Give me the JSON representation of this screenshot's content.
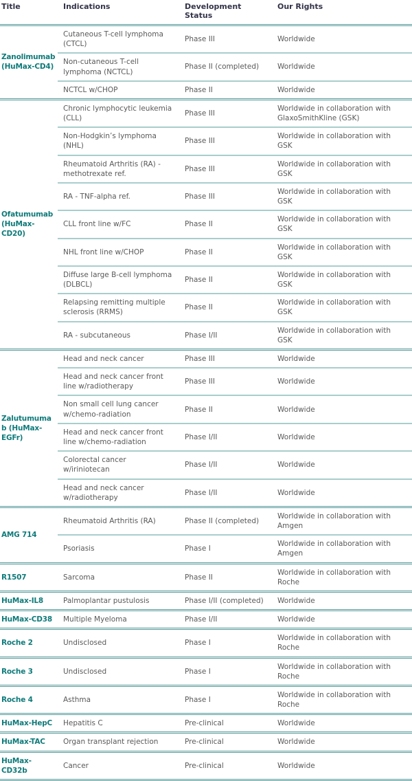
{
  "colors": {
    "accent_teal": "#0f7a7a",
    "header_text": "#333349",
    "body_text": "#595959",
    "divider_dark": "#569a9a",
    "divider_light": "#a9cdcd"
  },
  "table": {
    "columns": [
      "Title",
      "Indications",
      "Development Status",
      "Our Rights"
    ],
    "groups": [
      {
        "title": "Zanolimumab (HuMax-CD4)",
        "rows": [
          {
            "indication": "Cutaneous T-cell lymphoma (CTCL)",
            "status": "Phase III",
            "rights": "Worldwide"
          },
          {
            "indication": "Non-cutaneous T-cell lymphoma (NCTCL)",
            "status": "Phase II (completed)",
            "rights": "Worldwide"
          },
          {
            "indication": "NCTCL w/CHOP",
            "status": "Phase II",
            "rights": "Worldwide"
          }
        ]
      },
      {
        "title": "Ofatumumab (HuMax-CD20)",
        "rows": [
          {
            "indication": "Chronic lymphocytic leukemia (CLL)",
            "status": "Phase III",
            "rights": "Worldwide in collaboration with GlaxoSmithKline (GSK)"
          },
          {
            "indication": "Non-Hodgkin’s lymphoma (NHL)",
            "status": "Phase III",
            "rights": "Worldwide in collaboration with GSK"
          },
          {
            "indication": "Rheumatoid Arthritis (RA) - methotrexate ref.",
            "status": "Phase III",
            "rights": "Worldwide in collaboration with GSK"
          },
          {
            "indication": "RA - TNF-alpha ref.",
            "status": "Phase III",
            "rights": "Worldwide in collaboration with GSK"
          },
          {
            "indication": "CLL front line w/FC",
            "status": "Phase II",
            "rights": "Worldwide in collaboration with GSK"
          },
          {
            "indication": "NHL front line w/CHOP",
            "status": "Phase II",
            "rights": "Worldwide in collaboration with GSK"
          },
          {
            "indication": "Diffuse large B-cell lymphoma (DLBCL)",
            "status": "Phase II",
            "rights": "Worldwide in collaboration with GSK"
          },
          {
            "indication": "Relapsing remitting multiple sclerosis (RRMS)",
            "status": "Phase II",
            "rights": "Worldwide in collaboration with GSK"
          },
          {
            "indication": "RA - subcutaneous",
            "status": "Phase I/II",
            "rights": "Worldwide in collaboration with GSK"
          }
        ]
      },
      {
        "title": "Zalutumumab (HuMax-EGFr)",
        "rows": [
          {
            "indication": "Head and neck cancer",
            "status": "Phase III",
            "rights": "Worldwide"
          },
          {
            "indication": "Head and neck cancer front line w/radiotherapy",
            "status": "Phase III",
            "rights": "Worldwide"
          },
          {
            "indication": "Non small cell lung cancer w/chemo-radiation",
            "status": "Phase II",
            "rights": "Worldwide"
          },
          {
            "indication": "Head and neck cancer front line w/chemo-radiation",
            "status": "Phase I/II",
            "rights": "Worldwide"
          },
          {
            "indication": "Colorectal cancer w/iriniotecan",
            "status": "Phase I/II",
            "rights": "Worldwide"
          },
          {
            "indication": "Head and neck cancer w/radiotherapy",
            "status": "Phase I/II",
            "rights": "Worldwide"
          }
        ]
      },
      {
        "title": "AMG 714",
        "rows": [
          {
            "indication": "Rheumatoid Arthritis (RA)",
            "status": "Phase II (completed)",
            "rights": "Worldwide in collaboration with Amgen"
          },
          {
            "indication": "Psoriasis",
            "status": "Phase I",
            "rights": "Worldwide in collaboration with Amgen"
          }
        ]
      },
      {
        "title": "R1507",
        "rows": [
          {
            "indication": "Sarcoma",
            "status": "Phase II",
            "rights": "Worldwide in collaboration with Roche"
          }
        ]
      },
      {
        "title": "HuMax-IL8",
        "rows": [
          {
            "indication": "Palmoplantar pustulosis",
            "status": "Phase I/II (completed)",
            "rights": "Worldwide"
          }
        ]
      },
      {
        "title": "HuMax-CD38",
        "rows": [
          {
            "indication": "Multiple Myeloma",
            "status": "Phase I/II",
            "rights": "Worldwide"
          }
        ]
      },
      {
        "title": "Roche 2",
        "rows": [
          {
            "indication": "Undisclosed",
            "status": "Phase I",
            "rights": "Worldwide in collaboration with Roche"
          }
        ]
      },
      {
        "title": "Roche 3",
        "rows": [
          {
            "indication": "Undisclosed",
            "status": "Phase I",
            "rights": "Worldwide in collaboration with Roche"
          }
        ]
      },
      {
        "title": "Roche 4",
        "rows": [
          {
            "indication": "Asthma",
            "status": "Phase I",
            "rights": "Worldwide in collaboration with Roche"
          }
        ]
      },
      {
        "title": "HuMax-HepC",
        "rows": [
          {
            "indication": "Hepatitis C",
            "status": "Pre-clinical",
            "rights": "Worldwide"
          }
        ]
      },
      {
        "title": "HuMax-TAC",
        "rows": [
          {
            "indication": "Organ transplant rejection",
            "status": "Pre-clinical",
            "rights": "Worldwide"
          }
        ]
      },
      {
        "title": "HuMax-CD32b",
        "rows": [
          {
            "indication": "Cancer",
            "status": "Pre-clinical",
            "rights": "Worldwide"
          }
        ]
      }
    ]
  }
}
